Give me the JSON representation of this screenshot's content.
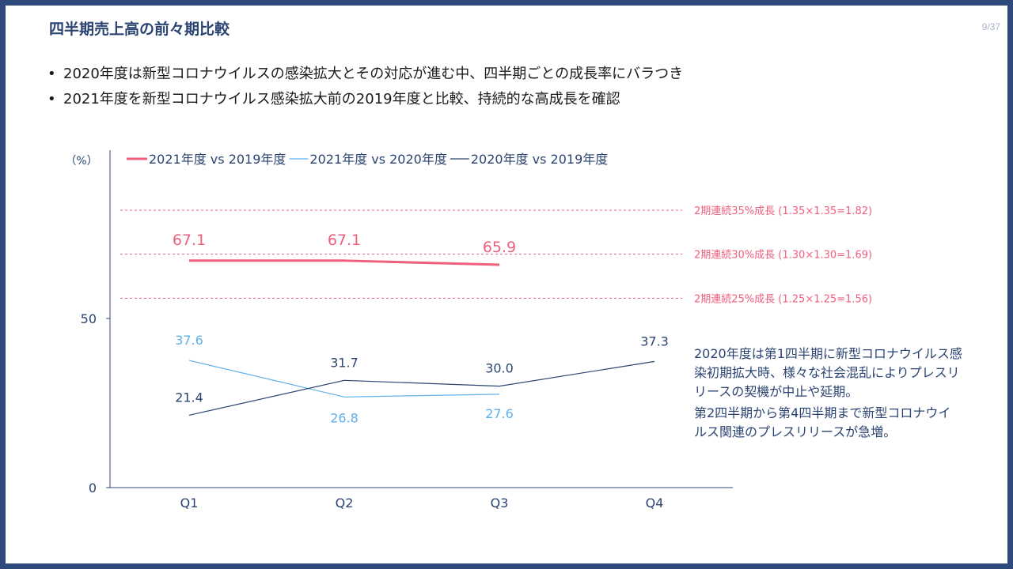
{
  "page": {
    "title": "四半期売上高の前々期比較",
    "page_number": "9/37"
  },
  "bullets": [
    "2020年度は新型コロナウイルスの感染拡大とその対応が進む中、四半期ごとの成長率にバラつき",
    "2021年度を新型コロナウイルス感染拡大前の2019年度と比較、持続的な高成長を確認"
  ],
  "notes": [
    "2020年度は第1四半期に新型コロナウイルス感染初期拡大時、様々な社会混乱によりプレスリリースの契機が中止や延期。",
    "第2四半期から第4四半期まで新型コロナウイルス関連のプレスリリースが急増。"
  ],
  "colors": {
    "frame": "#2d4a7a",
    "series_2021_vs_2019": "#ef5f7e",
    "series_2021_vs_2020": "#5fb0ea",
    "series_2020_vs_2019": "#2b4472",
    "reference": "#ef5f7e"
  },
  "chart_data": {
    "type": "line",
    "ylabel": "（%）",
    "categories": [
      "Q1",
      "Q2",
      "Q3",
      "Q4"
    ],
    "y_ticks": [
      0,
      50
    ],
    "series": [
      {
        "name": "2021年度 vs 2019年度",
        "values": [
          67.1,
          67.1,
          65.9,
          null
        ],
        "labels": [
          "67.1",
          "67.1",
          "65.9",
          null
        ]
      },
      {
        "name": "2021年度 vs 2020年度",
        "values": [
          37.6,
          26.8,
          27.6,
          null
        ],
        "labels": [
          "37.6",
          "26.8",
          "27.6",
          null
        ]
      },
      {
        "name": "2020年度 vs 2019年度",
        "values": [
          21.4,
          31.7,
          30.0,
          37.3
        ],
        "labels": [
          "21.4",
          "31.7",
          "30.0",
          "37.3"
        ]
      }
    ],
    "reference_lines": [
      {
        "value": 82,
        "label": "2期連続35%成長 (1.35×1.35=1.82)"
      },
      {
        "value": 69,
        "label": "2期連続30%成長 (1.30×1.30=1.69)"
      },
      {
        "value": 56,
        "label": "2期連続25%成長 (1.25×1.25=1.56)"
      }
    ],
    "legend_position": "top",
    "grid": false
  }
}
